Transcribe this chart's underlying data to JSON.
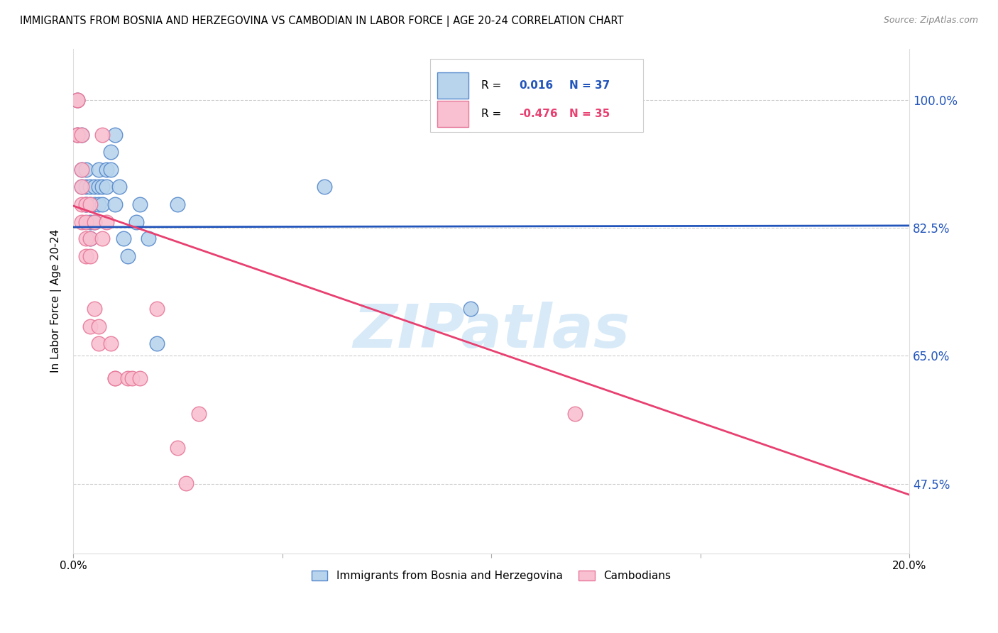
{
  "title": "IMMIGRANTS FROM BOSNIA AND HERZEGOVINA VS CAMBODIAN IN LABOR FORCE | AGE 20-24 CORRELATION CHART",
  "source": "Source: ZipAtlas.com",
  "ylabel": "In Labor Force | Age 20-24",
  "xlim": [
    0.0,
    0.2
  ],
  "ylim": [
    0.38,
    1.07
  ],
  "yticks": [
    0.475,
    0.65,
    0.825,
    1.0
  ],
  "ytick_labels": [
    "47.5%",
    "65.0%",
    "82.5%",
    "100.0%"
  ],
  "xticks": [
    0.0,
    0.05,
    0.1,
    0.15,
    0.2
  ],
  "xtick_labels": [
    "0.0%",
    "",
    "",
    "",
    "20.0%"
  ],
  "blue_R": 0.016,
  "blue_N": 37,
  "pink_R": -0.476,
  "pink_N": 35,
  "blue_color": "#b8d4ec",
  "blue_edge": "#5588cc",
  "pink_color": "#f8c0d0",
  "pink_edge": "#e8789a",
  "trend_blue_color": "#2255bb",
  "trend_pink_color": "#e84070",
  "watermark_color": "#cce4f6",
  "watermark": "ZIPatlas",
  "blue_trend": [
    0.0,
    0.826,
    0.2,
    0.828
  ],
  "pink_trend": [
    0.0,
    0.855,
    0.2,
    0.46
  ],
  "blue_points": [
    [
      0.001,
      1.0
    ],
    [
      0.001,
      0.952
    ],
    [
      0.002,
      0.952
    ],
    [
      0.002,
      0.905
    ],
    [
      0.002,
      0.881
    ],
    [
      0.003,
      0.905
    ],
    [
      0.003,
      0.881
    ],
    [
      0.003,
      0.857
    ],
    [
      0.003,
      0.857
    ],
    [
      0.004,
      0.881
    ],
    [
      0.004,
      0.857
    ],
    [
      0.004,
      0.833
    ],
    [
      0.004,
      0.81
    ],
    [
      0.005,
      0.881
    ],
    [
      0.005,
      0.857
    ],
    [
      0.005,
      0.833
    ],
    [
      0.006,
      0.905
    ],
    [
      0.006,
      0.881
    ],
    [
      0.006,
      0.857
    ],
    [
      0.007,
      0.881
    ],
    [
      0.007,
      0.857
    ],
    [
      0.008,
      0.905
    ],
    [
      0.008,
      0.881
    ],
    [
      0.009,
      0.929
    ],
    [
      0.009,
      0.905
    ],
    [
      0.01,
      0.952
    ],
    [
      0.01,
      0.857
    ],
    [
      0.011,
      0.881
    ],
    [
      0.012,
      0.81
    ],
    [
      0.013,
      0.786
    ],
    [
      0.015,
      0.833
    ],
    [
      0.016,
      0.857
    ],
    [
      0.018,
      0.81
    ],
    [
      0.02,
      0.667
    ],
    [
      0.025,
      0.857
    ],
    [
      0.06,
      0.881
    ],
    [
      0.095,
      0.714
    ]
  ],
  "pink_points": [
    [
      0.001,
      1.0
    ],
    [
      0.001,
      1.0
    ],
    [
      0.001,
      0.952
    ],
    [
      0.001,
      0.952
    ],
    [
      0.002,
      0.952
    ],
    [
      0.002,
      0.905
    ],
    [
      0.002,
      0.881
    ],
    [
      0.002,
      0.857
    ],
    [
      0.002,
      0.833
    ],
    [
      0.003,
      0.857
    ],
    [
      0.003,
      0.833
    ],
    [
      0.003,
      0.81
    ],
    [
      0.003,
      0.786
    ],
    [
      0.004,
      0.857
    ],
    [
      0.004,
      0.81
    ],
    [
      0.004,
      0.786
    ],
    [
      0.004,
      0.69
    ],
    [
      0.005,
      0.833
    ],
    [
      0.005,
      0.714
    ],
    [
      0.006,
      0.69
    ],
    [
      0.006,
      0.667
    ],
    [
      0.007,
      0.952
    ],
    [
      0.007,
      0.81
    ],
    [
      0.008,
      0.833
    ],
    [
      0.009,
      0.667
    ],
    [
      0.01,
      0.619
    ],
    [
      0.01,
      0.619
    ],
    [
      0.013,
      0.619
    ],
    [
      0.014,
      0.619
    ],
    [
      0.016,
      0.619
    ],
    [
      0.02,
      0.714
    ],
    [
      0.025,
      0.524
    ],
    [
      0.027,
      0.476
    ],
    [
      0.03,
      0.571
    ],
    [
      0.12,
      0.571
    ]
  ]
}
